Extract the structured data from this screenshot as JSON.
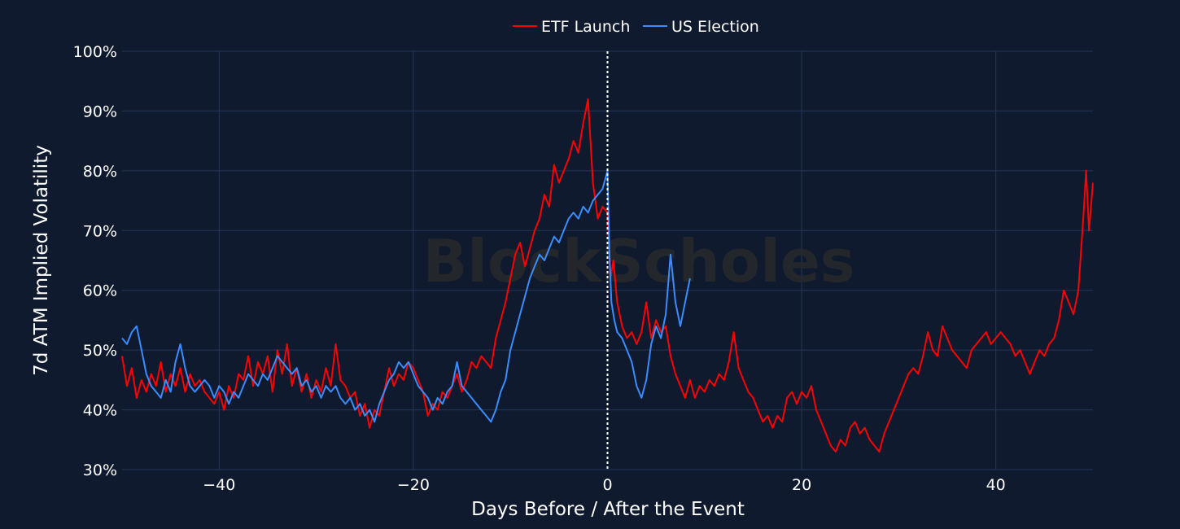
{
  "watermark": "BlockScholes",
  "chart_data": {
    "type": "line",
    "title": "",
    "xlabel": "Days Before / After the Event",
    "ylabel": "7d ATM Implied Volatility",
    "xlim": [
      -50,
      50
    ],
    "ylim": [
      30,
      100
    ],
    "x_ticks": [
      -40,
      -20,
      0,
      20,
      40
    ],
    "x_tick_labels": [
      "−40",
      "−20",
      "0",
      "20",
      "40"
    ],
    "y_ticks": [
      30,
      40,
      50,
      60,
      70,
      80,
      90,
      100
    ],
    "y_tick_labels": [
      "30%",
      "40%",
      "50%",
      "60%",
      "70%",
      "80%",
      "90%",
      "100%"
    ],
    "grid": true,
    "legend_position": "top-center",
    "event_marker": {
      "x": 0,
      "style": "dotted",
      "color": "#ffffff"
    },
    "series": [
      {
        "name": "ETF Launch",
        "color": "#ff0000",
        "points": [
          [
            -50,
            49
          ],
          [
            -49.5,
            44
          ],
          [
            -49,
            47
          ],
          [
            -48.5,
            42
          ],
          [
            -48,
            45
          ],
          [
            -47.5,
            43
          ],
          [
            -47,
            46
          ],
          [
            -46.5,
            44
          ],
          [
            -46,
            48
          ],
          [
            -45.5,
            43
          ],
          [
            -45,
            46
          ],
          [
            -44.5,
            44
          ],
          [
            -44,
            47
          ],
          [
            -43.5,
            43
          ],
          [
            -43,
            46
          ],
          [
            -42.5,
            44
          ],
          [
            -42,
            45
          ],
          [
            -41.5,
            43
          ],
          [
            -41,
            42
          ],
          [
            -40.5,
            41
          ],
          [
            -40,
            43
          ],
          [
            -39.5,
            40
          ],
          [
            -39,
            44
          ],
          [
            -38.5,
            42
          ],
          [
            -38,
            46
          ],
          [
            -37.5,
            45
          ],
          [
            -37,
            49
          ],
          [
            -36.5,
            44
          ],
          [
            -36,
            48
          ],
          [
            -35.5,
            46
          ],
          [
            -35,
            49
          ],
          [
            -34.5,
            43
          ],
          [
            -34,
            50
          ],
          [
            -33.5,
            46
          ],
          [
            -33,
            51
          ],
          [
            -32.5,
            44
          ],
          [
            -32,
            47
          ],
          [
            -31.5,
            43
          ],
          [
            -31,
            46
          ],
          [
            -30.5,
            42
          ],
          [
            -30,
            45
          ],
          [
            -29.5,
            43
          ],
          [
            -29,
            47
          ],
          [
            -28.5,
            44
          ],
          [
            -28,
            51
          ],
          [
            -27.5,
            45
          ],
          [
            -27,
            44
          ],
          [
            -26.5,
            42
          ],
          [
            -26,
            43
          ],
          [
            -25.5,
            39
          ],
          [
            -25,
            41
          ],
          [
            -24.5,
            37
          ],
          [
            -24,
            40
          ],
          [
            -23.5,
            39
          ],
          [
            -23,
            43
          ],
          [
            -22.5,
            47
          ],
          [
            -22,
            44
          ],
          [
            -21.5,
            46
          ],
          [
            -21,
            45
          ],
          [
            -20.5,
            48
          ],
          [
            -20,
            47
          ],
          [
            -19.5,
            45
          ],
          [
            -19,
            43
          ],
          [
            -18.5,
            39
          ],
          [
            -18,
            41
          ],
          [
            -17.5,
            40
          ],
          [
            -17,
            43
          ],
          [
            -16.5,
            42
          ],
          [
            -16,
            44
          ],
          [
            -15.5,
            46
          ],
          [
            -15,
            43
          ],
          [
            -14.5,
            45
          ],
          [
            -14,
            48
          ],
          [
            -13.5,
            47
          ],
          [
            -13,
            49
          ],
          [
            -12.5,
            48
          ],
          [
            -12,
            47
          ],
          [
            -11.5,
            52
          ],
          [
            -11,
            55
          ],
          [
            -10.5,
            58
          ],
          [
            -10,
            62
          ],
          [
            -9.5,
            66
          ],
          [
            -9,
            68
          ],
          [
            -8.5,
            64
          ],
          [
            -8,
            67
          ],
          [
            -7.5,
            70
          ],
          [
            -7,
            72
          ],
          [
            -6.5,
            76
          ],
          [
            -6,
            74
          ],
          [
            -5.5,
            81
          ],
          [
            -5,
            78
          ],
          [
            -4.5,
            80
          ],
          [
            -4,
            82
          ],
          [
            -3.5,
            85
          ],
          [
            -3,
            83
          ],
          [
            -2.5,
            88
          ],
          [
            -2,
            92
          ],
          [
            -1.5,
            78
          ],
          [
            -1,
            72
          ],
          [
            -0.5,
            74
          ],
          [
            0,
            73
          ],
          [
            0.3,
            62
          ],
          [
            0.6,
            65
          ],
          [
            1,
            58
          ],
          [
            1.5,
            54
          ],
          [
            2,
            52
          ],
          [
            2.5,
            53
          ],
          [
            3,
            51
          ],
          [
            3.5,
            53
          ],
          [
            4,
            58
          ],
          [
            4.5,
            52
          ],
          [
            5,
            55
          ],
          [
            5.5,
            53
          ],
          [
            6,
            54
          ],
          [
            6.5,
            49
          ],
          [
            7,
            46
          ],
          [
            7.5,
            44
          ],
          [
            8,
            42
          ],
          [
            8.5,
            45
          ],
          [
            9,
            42
          ],
          [
            9.5,
            44
          ],
          [
            10,
            43
          ],
          [
            10.5,
            45
          ],
          [
            11,
            44
          ],
          [
            11.5,
            46
          ],
          [
            12,
            45
          ],
          [
            12.5,
            48
          ],
          [
            13,
            53
          ],
          [
            13.5,
            47
          ],
          [
            14,
            45
          ],
          [
            14.5,
            43
          ],
          [
            15,
            42
          ],
          [
            15.5,
            40
          ],
          [
            16,
            38
          ],
          [
            16.5,
            39
          ],
          [
            17,
            37
          ],
          [
            17.5,
            39
          ],
          [
            18,
            38
          ],
          [
            18.5,
            42
          ],
          [
            19,
            43
          ],
          [
            19.5,
            41
          ],
          [
            20,
            43
          ],
          [
            20.5,
            42
          ],
          [
            21,
            44
          ],
          [
            21.5,
            40
          ],
          [
            22,
            38
          ],
          [
            22.5,
            36
          ],
          [
            23,
            34
          ],
          [
            23.5,
            33
          ],
          [
            24,
            35
          ],
          [
            24.5,
            34
          ],
          [
            25,
            37
          ],
          [
            25.5,
            38
          ],
          [
            26,
            36
          ],
          [
            26.5,
            37
          ],
          [
            27,
            35
          ],
          [
            27.5,
            34
          ],
          [
            28,
            33
          ],
          [
            28.5,
            36
          ],
          [
            29,
            38
          ],
          [
            29.5,
            40
          ],
          [
            30,
            42
          ],
          [
            30.5,
            44
          ],
          [
            31,
            46
          ],
          [
            31.5,
            47
          ],
          [
            32,
            46
          ],
          [
            32.5,
            49
          ],
          [
            33,
            53
          ],
          [
            33.5,
            50
          ],
          [
            34,
            49
          ],
          [
            34.5,
            54
          ],
          [
            35,
            52
          ],
          [
            35.5,
            50
          ],
          [
            36,
            49
          ],
          [
            36.5,
            48
          ],
          [
            37,
            47
          ],
          [
            37.5,
            50
          ],
          [
            38,
            51
          ],
          [
            38.5,
            52
          ],
          [
            39,
            53
          ],
          [
            39.5,
            51
          ],
          [
            40,
            52
          ],
          [
            40.5,
            53
          ],
          [
            41,
            52
          ],
          [
            41.5,
            51
          ],
          [
            42,
            49
          ],
          [
            42.5,
            50
          ],
          [
            43,
            48
          ],
          [
            43.5,
            46
          ],
          [
            44,
            48
          ],
          [
            44.5,
            50
          ],
          [
            45,
            49
          ],
          [
            45.5,
            51
          ],
          [
            46,
            52
          ],
          [
            46.5,
            55
          ],
          [
            47,
            60
          ],
          [
            47.5,
            58
          ],
          [
            48,
            56
          ],
          [
            48.5,
            60
          ],
          [
            49,
            72
          ],
          [
            49.3,
            80
          ],
          [
            49.6,
            70
          ],
          [
            50,
            78
          ]
        ]
      },
      {
        "name": "US Election",
        "color": "#3b8cff",
        "points": [
          [
            -50,
            52
          ],
          [
            -49.5,
            51
          ],
          [
            -49,
            53
          ],
          [
            -48.5,
            54
          ],
          [
            -48,
            50
          ],
          [
            -47.5,
            46
          ],
          [
            -47,
            44
          ],
          [
            -46.5,
            43
          ],
          [
            -46,
            42
          ],
          [
            -45.5,
            45
          ],
          [
            -45,
            43
          ],
          [
            -44.5,
            48
          ],
          [
            -44,
            51
          ],
          [
            -43.5,
            47
          ],
          [
            -43,
            44
          ],
          [
            -42.5,
            43
          ],
          [
            -42,
            44
          ],
          [
            -41.5,
            45
          ],
          [
            -41,
            44
          ],
          [
            -40.5,
            42
          ],
          [
            -40,
            44
          ],
          [
            -39.5,
            43
          ],
          [
            -39,
            41
          ],
          [
            -38.5,
            43
          ],
          [
            -38,
            42
          ],
          [
            -37.5,
            44
          ],
          [
            -37,
            46
          ],
          [
            -36.5,
            45
          ],
          [
            -36,
            44
          ],
          [
            -35.5,
            46
          ],
          [
            -35,
            45
          ],
          [
            -34.5,
            47
          ],
          [
            -34,
            49
          ],
          [
            -33.5,
            48
          ],
          [
            -33,
            47
          ],
          [
            -32.5,
            46
          ],
          [
            -32,
            47
          ],
          [
            -31.5,
            44
          ],
          [
            -31,
            45
          ],
          [
            -30.5,
            43
          ],
          [
            -30,
            44
          ],
          [
            -29.5,
            42
          ],
          [
            -29,
            44
          ],
          [
            -28.5,
            43
          ],
          [
            -28,
            44
          ],
          [
            -27.5,
            42
          ],
          [
            -27,
            41
          ],
          [
            -26.5,
            42
          ],
          [
            -26,
            40
          ],
          [
            -25.5,
            41
          ],
          [
            -25,
            39
          ],
          [
            -24.5,
            40
          ],
          [
            -24,
            38
          ],
          [
            -23.5,
            41
          ],
          [
            -23,
            43
          ],
          [
            -22.5,
            45
          ],
          [
            -22,
            46
          ],
          [
            -21.5,
            48
          ],
          [
            -21,
            47
          ],
          [
            -20.5,
            48
          ],
          [
            -20,
            46
          ],
          [
            -19.5,
            44
          ],
          [
            -19,
            43
          ],
          [
            -18.5,
            42
          ],
          [
            -18,
            40
          ],
          [
            -17.5,
            42
          ],
          [
            -17,
            41
          ],
          [
            -16.5,
            43
          ],
          [
            -16,
            44
          ],
          [
            -15.5,
            48
          ],
          [
            -15,
            44
          ],
          [
            -14.5,
            43
          ],
          [
            -14,
            42
          ],
          [
            -13.5,
            41
          ],
          [
            -13,
            40
          ],
          [
            -12.5,
            39
          ],
          [
            -12,
            38
          ],
          [
            -11.5,
            40
          ],
          [
            -11,
            43
          ],
          [
            -10.5,
            45
          ],
          [
            -10,
            50
          ],
          [
            -9.5,
            53
          ],
          [
            -9,
            56
          ],
          [
            -8.5,
            59
          ],
          [
            -8,
            62
          ],
          [
            -7.5,
            64
          ],
          [
            -7,
            66
          ],
          [
            -6.5,
            65
          ],
          [
            -6,
            67
          ],
          [
            -5.5,
            69
          ],
          [
            -5,
            68
          ],
          [
            -4.5,
            70
          ],
          [
            -4,
            72
          ],
          [
            -3.5,
            73
          ],
          [
            -3,
            72
          ],
          [
            -2.5,
            74
          ],
          [
            -2,
            73
          ],
          [
            -1.5,
            75
          ],
          [
            -1,
            76
          ],
          [
            -0.5,
            77
          ],
          [
            0,
            80
          ],
          [
            0.2,
            66
          ],
          [
            0.4,
            58
          ],
          [
            0.7,
            55
          ],
          [
            1,
            53
          ],
          [
            1.5,
            52
          ],
          [
            2,
            50
          ],
          [
            2.5,
            48
          ],
          [
            3,
            44
          ],
          [
            3.5,
            42
          ],
          [
            4,
            45
          ],
          [
            4.5,
            51
          ],
          [
            5,
            54
          ],
          [
            5.5,
            52
          ],
          [
            6,
            56
          ],
          [
            6.5,
            66
          ],
          [
            7,
            58
          ],
          [
            7.5,
            54
          ],
          [
            8,
            58
          ],
          [
            8.5,
            62
          ]
        ]
      }
    ]
  }
}
